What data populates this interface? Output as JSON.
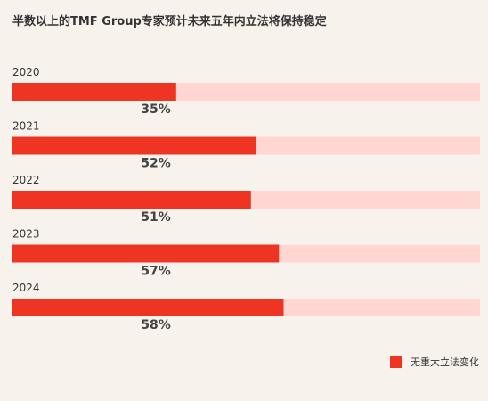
{
  "chart_data": {
    "type": "bar",
    "orientation": "horizontal",
    "title": "半数以上的TMF Group专家预计未来五年内立法将保持稳定",
    "categories": [
      "2020",
      "2021",
      "2022",
      "2023",
      "2024"
    ],
    "series": [
      {
        "name": "无重大立法变化",
        "values": [
          35,
          52,
          51,
          57,
          58
        ]
      }
    ],
    "value_labels": [
      "35%",
      "52%",
      "51%",
      "57%",
      "58%"
    ],
    "xlim": [
      0,
      100
    ],
    "grid": false,
    "legend_position": "bottom-right",
    "colors": {
      "bar": "#ee3524",
      "track": "#ffd6d2",
      "background": "#f7f3ec"
    }
  }
}
